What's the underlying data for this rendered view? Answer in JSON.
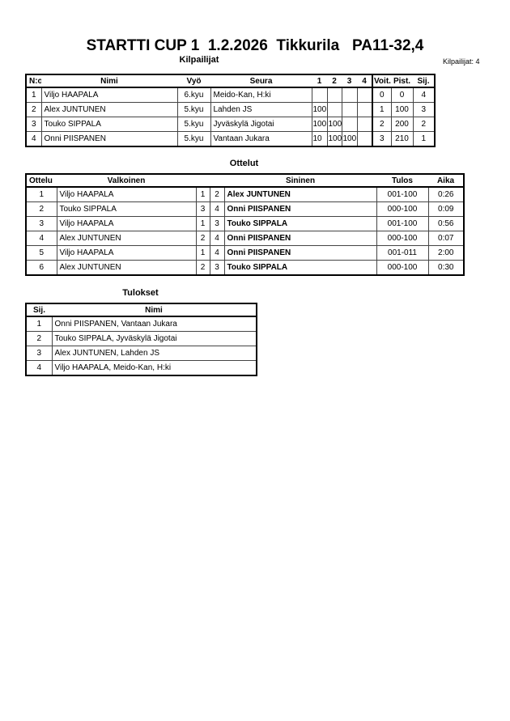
{
  "title": "STARTTI CUP 1  1.2.2026  Tikkurila   PA11-32,4",
  "competitors": {
    "heading": "Kilpailijat",
    "count_label": "Kilpailijat: 4",
    "columns": [
      "N:o",
      "Nimi",
      "Vyö",
      "Seura",
      "1",
      "2",
      "3",
      "4",
      "Voit.",
      "Pist.",
      "Sij."
    ],
    "rows": [
      {
        "no": "1",
        "name": "Viljo HAAPALA",
        "belt": "6.kyu",
        "club": "Meido-Kan, H:ki",
        "s1": "",
        "s2": "",
        "s3": "",
        "s4": "",
        "wins": "0",
        "points": "0",
        "rank": "4"
      },
      {
        "no": "2",
        "name": "Alex JUNTUNEN",
        "belt": "5.kyu",
        "club": "Lahden JS",
        "s1": "100",
        "s2": "",
        "s3": "",
        "s4": "",
        "wins": "1",
        "points": "100",
        "rank": "3"
      },
      {
        "no": "3",
        "name": "Touko SIPPALA",
        "belt": "5.kyu",
        "club": "Jyväskylä Jigotai",
        "s1": "100",
        "s2": "100",
        "s3": "",
        "s4": "",
        "wins": "2",
        "points": "200",
        "rank": "2"
      },
      {
        "no": "4",
        "name": "Onni PIISPANEN",
        "belt": "5.kyu",
        "club": "Vantaan Jukara",
        "s1": "10",
        "s2": "100",
        "s3": "100",
        "s4": "",
        "wins": "3",
        "points": "210",
        "rank": "1"
      }
    ]
  },
  "matches": {
    "heading": "Ottelut",
    "columns": [
      "Ottelu",
      "Valkoinen",
      "Sininen",
      "Tulos",
      "Aika"
    ],
    "rows": [
      {
        "no": "1",
        "white": "Viljo HAAPALA",
        "wn": "1",
        "bn": "2",
        "blue": "Alex JUNTUNEN",
        "result": "001-100",
        "time": "0:26"
      },
      {
        "no": "2",
        "white": "Touko SIPPALA",
        "wn": "3",
        "bn": "4",
        "blue": "Onni PIISPANEN",
        "result": "000-100",
        "time": "0:09"
      },
      {
        "no": "3",
        "white": "Viljo HAAPALA",
        "wn": "1",
        "bn": "3",
        "blue": "Touko SIPPALA",
        "result": "001-100",
        "time": "0:56"
      },
      {
        "no": "4",
        "white": "Alex JUNTUNEN",
        "wn": "2",
        "bn": "4",
        "blue": "Onni PIISPANEN",
        "result": "000-100",
        "time": "0:07"
      },
      {
        "no": "5",
        "white": "Viljo HAAPALA",
        "wn": "1",
        "bn": "4",
        "blue": "Onni PIISPANEN",
        "result": "001-011",
        "time": "2:00"
      },
      {
        "no": "6",
        "white": "Alex JUNTUNEN",
        "wn": "2",
        "bn": "3",
        "blue": "Touko SIPPALA",
        "result": "000-100",
        "time": "0:30"
      }
    ]
  },
  "results": {
    "heading": "Tulokset",
    "columns": [
      "Sij.",
      "Nimi"
    ],
    "rows": [
      {
        "rank": "1",
        "name": "Onni PIISPANEN, Vantaan Jukara"
      },
      {
        "rank": "2",
        "name": "Touko SIPPALA, Jyväskylä Jigotai"
      },
      {
        "rank": "3",
        "name": "Alex JUNTUNEN, Lahden JS"
      },
      {
        "rank": "4",
        "name": "Viljo HAAPALA, Meido-Kan, H:ki"
      }
    ]
  }
}
